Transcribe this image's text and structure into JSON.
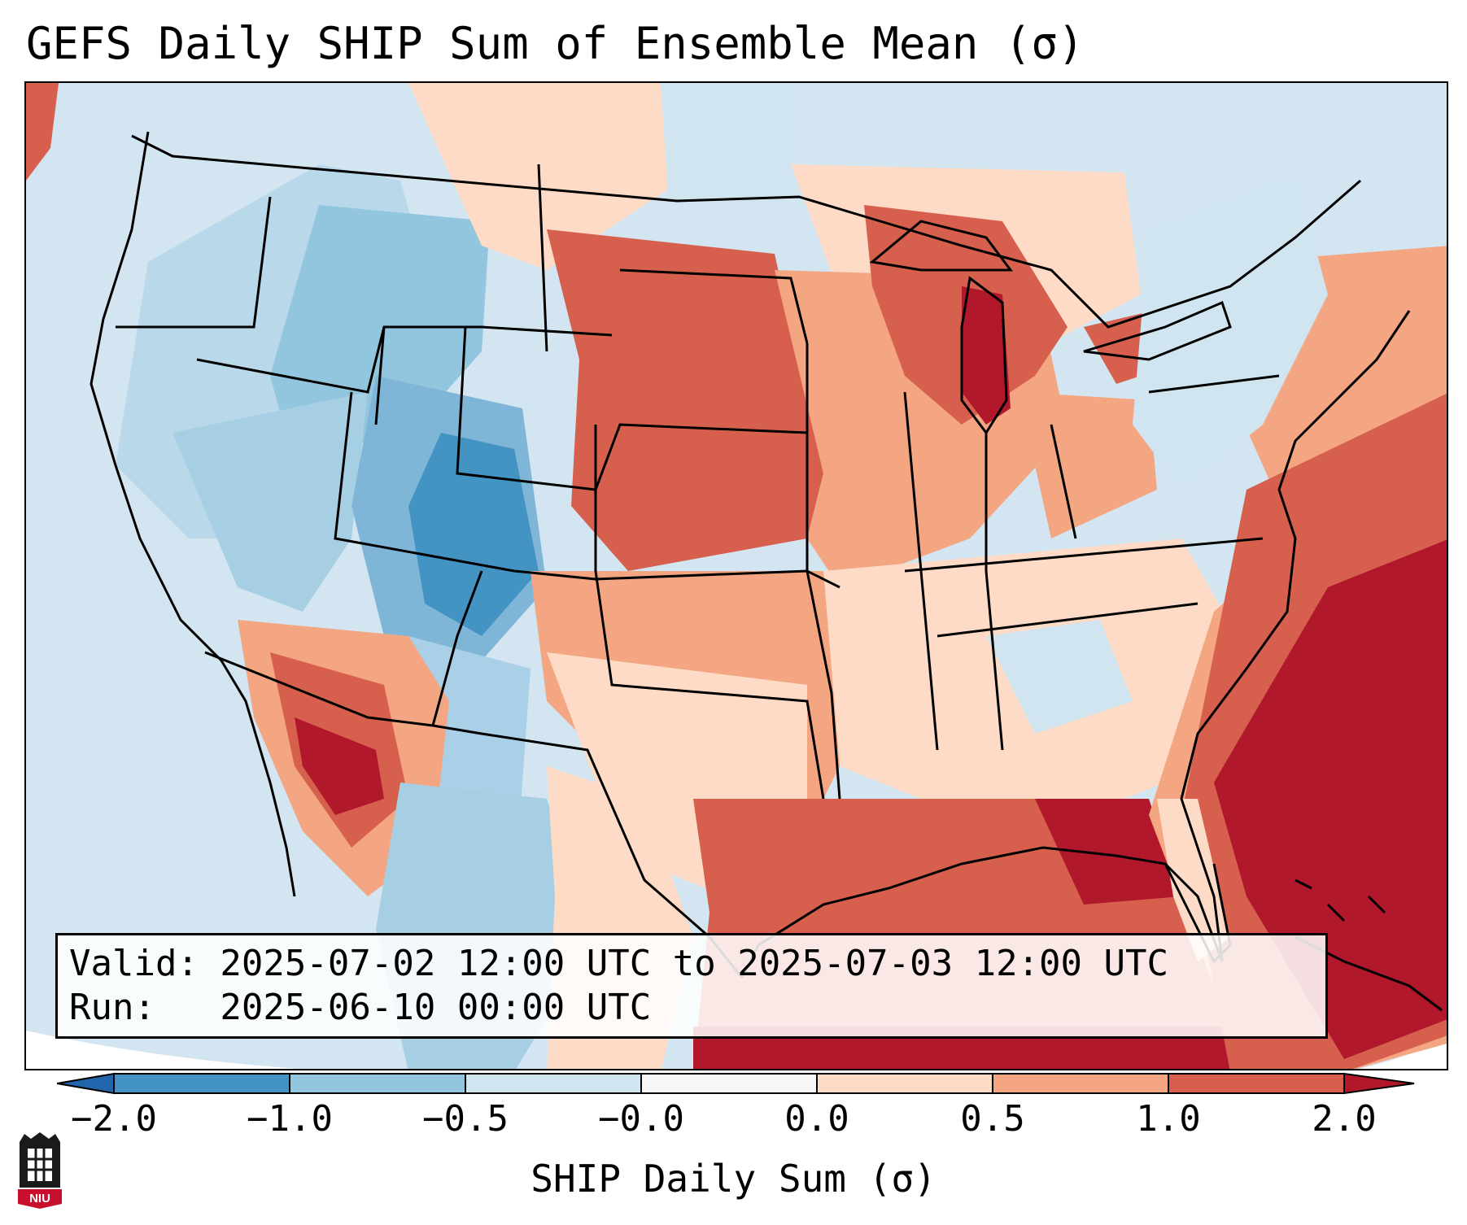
{
  "title": "GEFS Daily SHIP Sum of Ensemble Mean (σ)",
  "info": {
    "valid_line": "Valid: 2025-07-02 12:00 UTC to 2025-07-03 12:00 UTC",
    "run_line": "Run:   2025-06-10 00:00 UTC"
  },
  "colorbar": {
    "label": "SHIP Daily Sum (σ)",
    "ticks": [
      "−2.0",
      "−1.0",
      "−0.5",
      "−0.0",
      "0.0",
      "0.5",
      "1.0",
      "2.0"
    ],
    "colors": [
      "#4393c3",
      "#92c5de",
      "#d1e5f0",
      "#f7f7f7",
      "#fddbc7",
      "#f4a582",
      "#d6604d",
      "#b2182b"
    ]
  },
  "logo": {
    "text": "NIU"
  },
  "map": {
    "region": "Contiguous United States, southern Canada, northern Mexico, Gulf of Mexico",
    "anomaly_zones": [
      {
        "name": "Northern Plains and Upper Midwest",
        "level": "1.0"
      },
      {
        "name": "Lake Michigan",
        "level": "2.0"
      },
      {
        "name": "Gulf of Mexico",
        "level": "1.0"
      },
      {
        "name": "Western Atlantic",
        "level": "2.0"
      },
      {
        "name": "Sonora / Gulf of California",
        "level": "2.0"
      },
      {
        "name": "Wyoming / Colorado Rockies",
        "level": "-1.0"
      },
      {
        "name": "Idaho / Western Montana",
        "level": "-0.5"
      },
      {
        "name": "Pacific Northwest and Great Basin",
        "level": "-0.5"
      },
      {
        "name": "Southeast and Mid-Atlantic",
        "level": "0.0"
      },
      {
        "name": "Northeast US",
        "level": "-0.0"
      }
    ]
  }
}
